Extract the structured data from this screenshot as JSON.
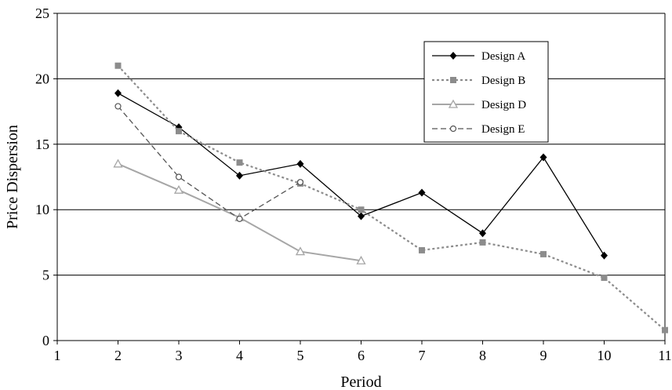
{
  "chart_data": {
    "type": "line",
    "title": "",
    "xlabel": "Period",
    "ylabel": "Price Dispersion",
    "xlim": [
      1,
      11
    ],
    "ylim": [
      0,
      25
    ],
    "x_ticks": [
      1,
      2,
      3,
      4,
      5,
      6,
      7,
      8,
      9,
      10,
      11
    ],
    "y_ticks": [
      0,
      5,
      10,
      15,
      20,
      25
    ],
    "grid": "horizontal",
    "legend_position": "top-right",
    "series": [
      {
        "name": "Design A",
        "color": "#000000",
        "line_style": "solid",
        "marker": "diamond",
        "x": [
          2,
          3,
          4,
          5,
          6,
          7,
          8,
          9,
          10
        ],
        "values": [
          18.9,
          16.3,
          12.6,
          13.5,
          9.5,
          11.3,
          8.2,
          14.0,
          6.5
        ]
      },
      {
        "name": "Design B",
        "color": "#8c8c8c",
        "line_style": "dotted",
        "marker": "square",
        "x": [
          2,
          3,
          4,
          5,
          6,
          7,
          8,
          9,
          10,
          11
        ],
        "values": [
          21.0,
          16.0,
          13.6,
          12.0,
          10.0,
          6.9,
          7.5,
          6.6,
          4.8,
          0.8
        ]
      },
      {
        "name": "Design D",
        "color": "#a6a6a6",
        "line_style": "solid",
        "marker": "triangle",
        "x": [
          2,
          3,
          4,
          5,
          6
        ],
        "values": [
          13.5,
          11.5,
          9.4,
          6.8,
          6.1
        ]
      },
      {
        "name": "Design E",
        "color": "#555555",
        "line_style": "dashed",
        "marker": "circle",
        "x": [
          2,
          3,
          4,
          5
        ],
        "values": [
          17.9,
          12.5,
          9.3,
          12.1
        ]
      }
    ]
  }
}
